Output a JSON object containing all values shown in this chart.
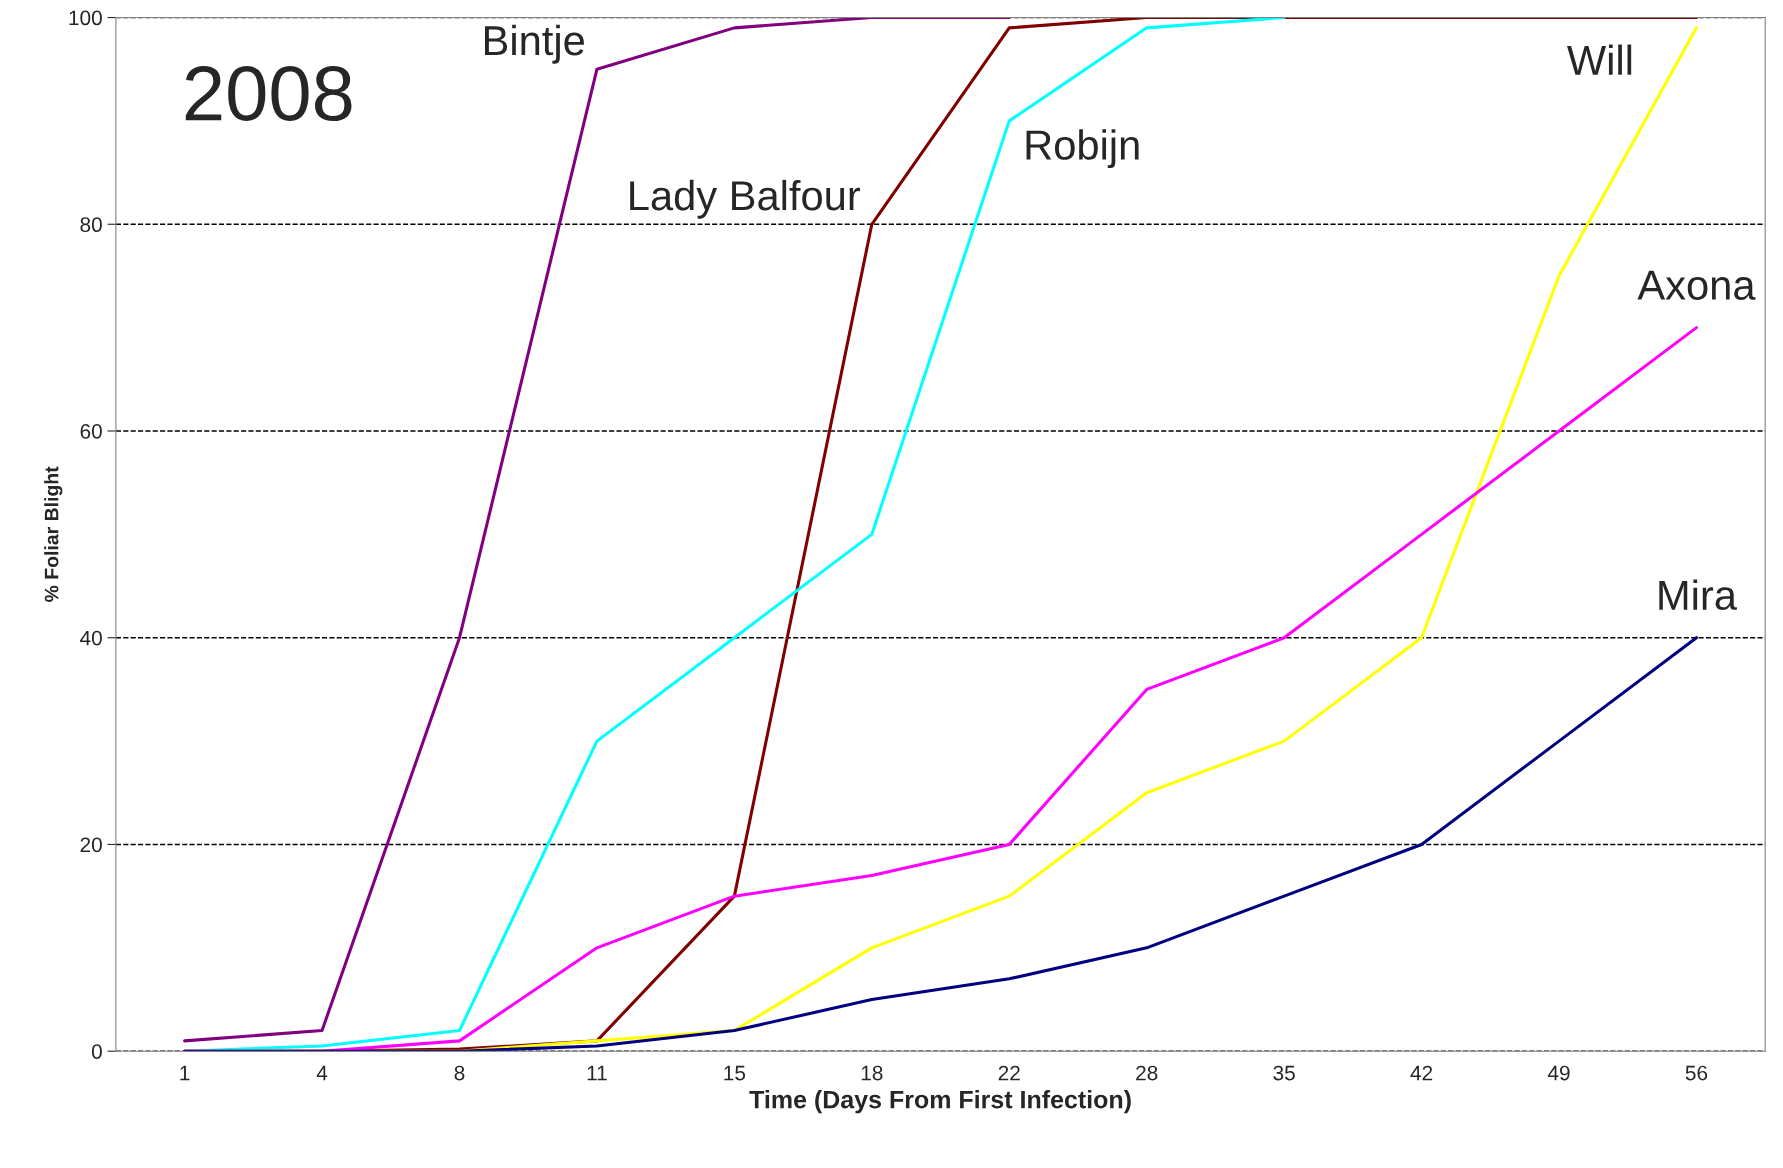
{
  "chart_data": {
    "type": "line",
    "xlabel": "Time (Days From First Infection)",
    "ylabel": "% Foliar Blight",
    "annotations": [
      "2008"
    ],
    "categories": [
      "1",
      "4",
      "8",
      "11",
      "15",
      "18",
      "22",
      "28",
      "35",
      "42",
      "49",
      "56"
    ],
    "ylim": [
      0,
      100
    ],
    "yticks": [
      0,
      20,
      40,
      60,
      80,
      100
    ],
    "grid": "y",
    "legend": false,
    "marker": "none",
    "line_style": "solid",
    "series": [
      {
        "name": "Bintje",
        "color": "#800080",
        "values": [
          1,
          2,
          40,
          95,
          99,
          100,
          100,
          null,
          null,
          null,
          null,
          null
        ]
      },
      {
        "name": "Lady Balfour",
        "color": "#800000",
        "values": [
          0,
          0,
          0.2,
          1,
          15,
          80,
          99,
          100,
          100,
          100,
          100,
          100
        ]
      },
      {
        "name": "Robijn",
        "color": "#00ffff",
        "values": [
          0,
          0.5,
          2,
          30,
          40,
          50,
          90,
          99,
          100,
          null,
          null,
          null
        ]
      },
      {
        "name": "Will",
        "color": "#ffff00",
        "values": [
          0,
          0,
          0,
          1,
          2,
          10,
          15,
          25,
          30,
          40,
          75,
          99
        ]
      },
      {
        "name": "Axona",
        "color": "#ff00ff",
        "values": [
          0,
          0,
          1,
          10,
          15,
          17,
          20,
          35,
          40,
          50,
          60,
          70
        ]
      },
      {
        "name": "Mira",
        "color": "#000080",
        "values": [
          0,
          0,
          0,
          0.5,
          2,
          5,
          7,
          10,
          15,
          20,
          30,
          40
        ]
      }
    ]
  }
}
